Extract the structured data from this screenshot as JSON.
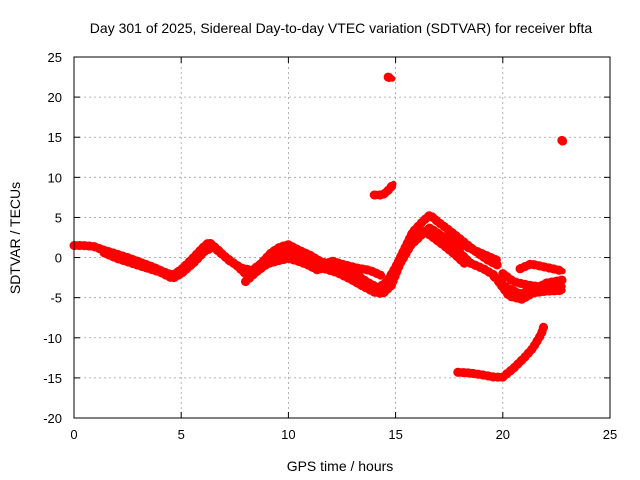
{
  "chart_data": {
    "type": "scatter",
    "title": "Day 301 of 2025, Sidereal Day-to-day VTEC variation (SDTVAR) for receiver bfta",
    "xlabel": "GPS time / hours",
    "ylabel": "SDTVAR / TECUs",
    "xlim": [
      0,
      25
    ],
    "ylim": [
      -20,
      25
    ],
    "xticks": [
      0,
      5,
      10,
      15,
      20,
      25
    ],
    "yticks": [
      -20,
      -15,
      -10,
      -5,
      0,
      5,
      10,
      15,
      20,
      25
    ],
    "grid": true,
    "legend": "none",
    "marker_color": "#ff0000",
    "series": [
      {
        "name": "track-1",
        "points": [
          [
            0,
            1.5
          ],
          [
            0.4,
            1.5
          ],
          [
            0.9,
            1.4
          ],
          [
            1.3,
            1.0
          ],
          [
            1.9,
            0.5
          ],
          [
            2.5,
            0.0
          ],
          [
            3.1,
            -0.6
          ],
          [
            3.7,
            -1.2
          ],
          [
            4.2,
            -1.8
          ],
          [
            4.6,
            -2.2
          ],
          [
            5.0,
            -1.5
          ],
          [
            5.5,
            -0.2
          ],
          [
            6.0,
            1.2
          ],
          [
            6.3,
            1.9
          ],
          [
            6.7,
            1.0
          ],
          [
            7.2,
            -0.3
          ],
          [
            7.8,
            -1.3
          ],
          [
            8.3,
            -1.6
          ],
          [
            8.7,
            -0.8
          ],
          [
            9.2,
            0.6
          ],
          [
            9.6,
            1.3
          ],
          [
            10.0,
            1.6
          ],
          [
            10.5,
            0.9
          ],
          [
            11.0,
            0.3
          ],
          [
            11.5,
            -0.5
          ],
          [
            12.1,
            -1.0
          ],
          [
            12.6,
            -1.4
          ],
          [
            13.2,
            -2.2
          ],
          [
            13.7,
            -3.1
          ],
          [
            14.2,
            -3.8
          ],
          [
            14.6,
            -3.0
          ],
          [
            15.0,
            -1.2
          ],
          [
            15.4,
            1.0
          ],
          [
            15.8,
            3.2
          ],
          [
            16.3,
            4.6
          ],
          [
            16.6,
            5.3
          ],
          [
            17.0,
            4.4
          ],
          [
            17.6,
            3.2
          ],
          [
            18.2,
            1.9
          ],
          [
            18.8,
            0.6
          ],
          [
            19.3,
            -0.3
          ],
          [
            19.8,
            -1.0
          ]
        ]
      },
      {
        "name": "track-2",
        "points": [
          [
            1.4,
            0.6
          ],
          [
            2.0,
            -0.1
          ],
          [
            2.7,
            -0.7
          ],
          [
            3.4,
            -1.3
          ],
          [
            4.0,
            -1.8
          ],
          [
            4.6,
            -2.6
          ],
          [
            5.0,
            -2.0
          ],
          [
            5.6,
            -0.6
          ],
          [
            6.1,
            0.8
          ],
          [
            6.5,
            1.3
          ],
          [
            7.0,
            0.2
          ],
          [
            7.6,
            -1.0
          ],
          [
            8.1,
            -2.3
          ],
          [
            8.6,
            -1.3
          ],
          [
            9.1,
            0.0
          ],
          [
            9.6,
            0.5
          ],
          [
            10.1,
            0.9
          ],
          [
            10.6,
            0.1
          ],
          [
            11.1,
            -0.6
          ],
          [
            11.7,
            -1.4
          ],
          [
            12.3,
            -1.9
          ],
          [
            12.9,
            -2.7
          ],
          [
            13.5,
            -3.6
          ],
          [
            14.0,
            -4.3
          ],
          [
            14.4,
            -4.5
          ],
          [
            14.8,
            -3.5
          ],
          [
            15.2,
            -0.8
          ],
          [
            15.7,
            1.5
          ],
          [
            16.2,
            2.8
          ],
          [
            16.6,
            3.7
          ],
          [
            17.1,
            2.8
          ],
          [
            17.6,
            1.7
          ],
          [
            18.1,
            0.3
          ],
          [
            18.5,
            -0.7
          ],
          [
            19.1,
            -1.4
          ],
          [
            19.6,
            -2.2
          ]
        ]
      },
      {
        "name": "track-3",
        "points": [
          [
            8.0,
            -3.0
          ],
          [
            8.5,
            -1.8
          ],
          [
            9.0,
            -0.8
          ],
          [
            9.5,
            -0.4
          ],
          [
            10.0,
            -0.1
          ],
          [
            10.4,
            -0.4
          ],
          [
            10.9,
            -0.9
          ],
          [
            11.4,
            -1.6
          ],
          [
            12.0,
            -0.4
          ],
          [
            12.6,
            -0.9
          ],
          [
            13.2,
            -1.3
          ],
          [
            13.8,
            -1.6
          ],
          [
            14.3,
            -2.2
          ]
        ]
      },
      {
        "name": "track-4",
        "points": [
          [
            15.3,
            0.3
          ],
          [
            15.8,
            2.2
          ],
          [
            16.3,
            3.4
          ],
          [
            16.8,
            2.4
          ],
          [
            17.3,
            1.4
          ],
          [
            17.8,
            0.3
          ],
          [
            18.2,
            -0.7
          ]
        ]
      },
      {
        "name": "track-5",
        "points": [
          [
            15.8,
            2.6
          ],
          [
            16.5,
            3.4
          ],
          [
            17.2,
            2.6
          ],
          [
            17.9,
            1.9
          ],
          [
            18.5,
            1.1
          ],
          [
            19.1,
            0.4
          ],
          [
            19.7,
            -0.3
          ]
        ]
      },
      {
        "name": "track-6",
        "points": [
          [
            19.6,
            -2.4
          ],
          [
            20.2,
            -3.8
          ],
          [
            20.8,
            -4.5
          ],
          [
            21.4,
            -4.2
          ],
          [
            22.0,
            -3.2
          ],
          [
            22.6,
            -2.9
          ],
          [
            22.8,
            -2.8
          ]
        ]
      },
      {
        "name": "track-7",
        "points": [
          [
            19.8,
            -3.0
          ],
          [
            20.3,
            -4.8
          ],
          [
            20.9,
            -5.2
          ],
          [
            21.4,
            -4.4
          ],
          [
            22.0,
            -4.2
          ],
          [
            22.8,
            -4.1
          ]
        ]
      },
      {
        "name": "track-8",
        "points": [
          [
            20.0,
            -2.0
          ],
          [
            20.5,
            -3.0
          ],
          [
            21.1,
            -3.4
          ],
          [
            21.6,
            -3.6
          ],
          [
            22.2,
            -3.6
          ],
          [
            22.8,
            -3.6
          ]
        ]
      },
      {
        "name": "track-9",
        "points": [
          [
            20.8,
            -1.4
          ],
          [
            21.3,
            -0.8
          ],
          [
            22.0,
            -1.2
          ],
          [
            22.5,
            -1.5
          ],
          [
            22.8,
            -1.7
          ]
        ]
      },
      {
        "name": "track-10",
        "points": [
          [
            14.0,
            7.8
          ],
          [
            14.4,
            7.8
          ],
          [
            14.7,
            8.5
          ],
          [
            14.9,
            9.2
          ]
        ]
      },
      {
        "name": "track-11",
        "points": [
          [
            17.9,
            -14.3
          ],
          [
            18.5,
            -14.4
          ],
          [
            19.0,
            -14.6
          ],
          [
            19.6,
            -14.9
          ],
          [
            20.0,
            -14.9
          ],
          [
            20.5,
            -13.8
          ],
          [
            21.0,
            -12.5
          ],
          [
            21.4,
            -11.3
          ],
          [
            21.8,
            -9.5
          ],
          [
            21.9,
            -8.7
          ]
        ]
      },
      {
        "name": "track-12",
        "points": [
          [
            14.65,
            22.5
          ],
          [
            14.85,
            22.3
          ]
        ]
      },
      {
        "name": "track-13",
        "points": [
          [
            22.75,
            14.6
          ],
          [
            22.85,
            14.4
          ]
        ]
      }
    ]
  }
}
